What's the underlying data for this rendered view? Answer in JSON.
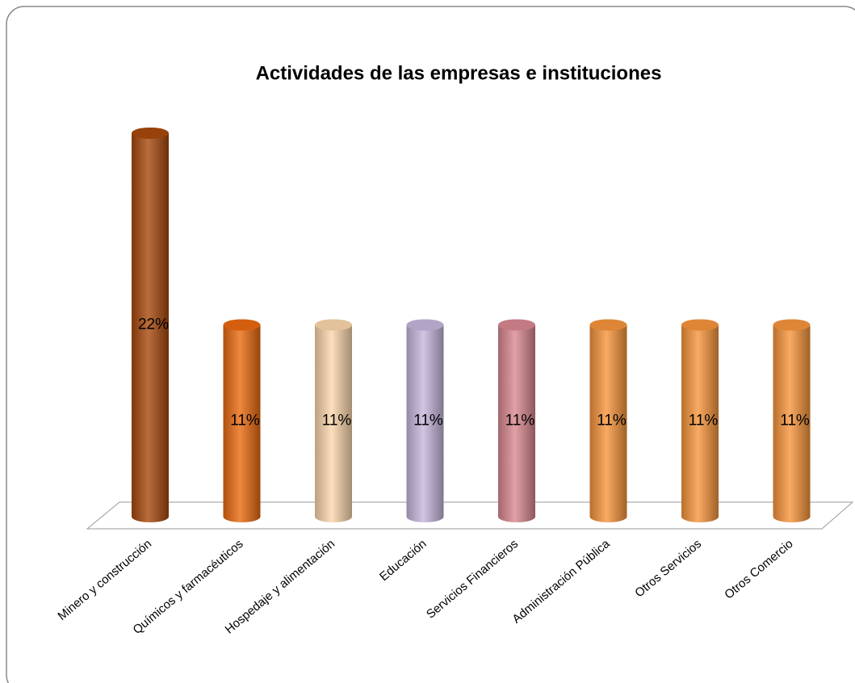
{
  "chart_data": {
    "type": "bar",
    "title": "Actividades de las empresas e instituciones",
    "categories": [
      "Minero y construcción",
      "Químicos y farmacéuticos",
      "Hospedaje y alimentación",
      "Educación",
      "Servicios Financieros",
      "Administración Pública",
      "Otros Servicios",
      "Otros Comercio"
    ],
    "values": [
      22,
      11,
      11,
      11,
      11,
      11,
      11,
      11
    ],
    "value_labels": [
      "22%",
      "11%",
      "11%",
      "11%",
      "11%",
      "11%",
      "11%",
      "11%"
    ],
    "colors": [
      "#a8490c",
      "#ea6a10",
      "#fbd7ac",
      "#c6b6dc",
      "#d98890",
      "#f7953c",
      "#f7953c",
      "#f7953c"
    ]
  }
}
